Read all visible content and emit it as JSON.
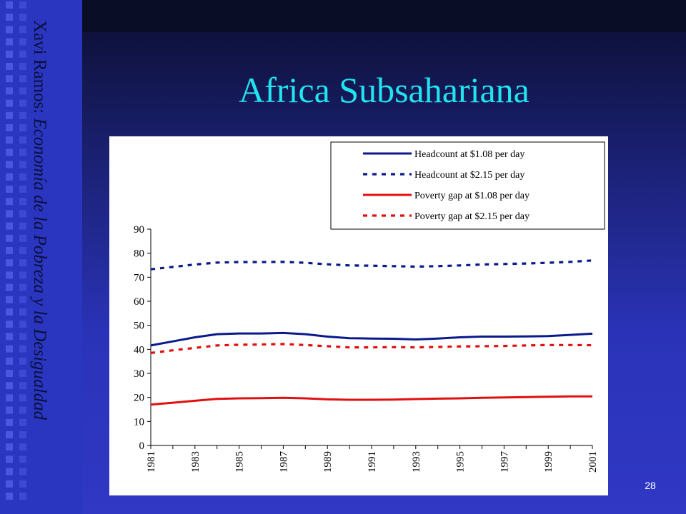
{
  "slide": {
    "title": "Africa Subsahariana",
    "author": "Xavi Ramos:",
    "subtitle": "Economía de la Pobreza y la Desigualdad",
    "page_number": "28"
  },
  "colors": {
    "accent_title": "#22e4ee",
    "headcount": "#0a1a8a",
    "poverty_gap": "#e01010"
  },
  "chart_data": {
    "type": "line",
    "x": [
      1981,
      1982,
      1983,
      1984,
      1985,
      1986,
      1987,
      1988,
      1989,
      1990,
      1991,
      1992,
      1993,
      1994,
      1995,
      1996,
      1997,
      1998,
      1999,
      2000,
      2001
    ],
    "x_tick_labels": [
      "1981",
      "1983",
      "1985",
      "1987",
      "1989",
      "1991",
      "1993",
      "1995",
      "1997",
      "1999",
      "2001"
    ],
    "y_ticks": [
      0,
      10,
      20,
      30,
      40,
      50,
      60,
      70,
      80,
      90
    ],
    "ylim": [
      0,
      90
    ],
    "xlabel": "",
    "ylabel": "",
    "grid": false,
    "legend_position": "top-right",
    "series": [
      {
        "name": "Headcount at $1.08 per day",
        "style": "solid",
        "color": "#0a1a8a",
        "values": [
          41.6,
          43.3,
          45.0,
          46.3,
          46.6,
          46.6,
          46.8,
          46.3,
          45.3,
          44.6,
          44.5,
          44.4,
          44.1,
          44.5,
          45.0,
          45.3,
          45.3,
          45.4,
          45.5,
          46.0,
          46.5
        ]
      },
      {
        "name": "Headcount at $2.15 per day",
        "style": "dotted",
        "color": "#0a1a8a",
        "values": [
          73.3,
          74.3,
          75.3,
          76.1,
          76.3,
          76.3,
          76.4,
          76.0,
          75.4,
          74.9,
          74.8,
          74.6,
          74.4,
          74.6,
          74.9,
          75.3,
          75.5,
          75.7,
          76.0,
          76.4,
          77.0
        ]
      },
      {
        "name": "Poverty gap at $1.08 per day",
        "style": "solid",
        "color": "#e01010",
        "values": [
          17.0,
          17.8,
          18.6,
          19.4,
          19.6,
          19.7,
          19.8,
          19.6,
          19.2,
          19.0,
          19.0,
          19.1,
          19.3,
          19.5,
          19.6,
          19.8,
          20.0,
          20.1,
          20.3,
          20.4,
          20.4
        ]
      },
      {
        "name": "Poverty gap at $2.15 per day",
        "style": "dotted",
        "color": "#e01010",
        "values": [
          38.5,
          39.6,
          40.6,
          41.6,
          41.9,
          42.0,
          42.2,
          41.8,
          41.3,
          40.8,
          40.8,
          40.9,
          40.8,
          41.0,
          41.2,
          41.3,
          41.4,
          41.6,
          41.8,
          41.8,
          41.7
        ]
      }
    ]
  }
}
